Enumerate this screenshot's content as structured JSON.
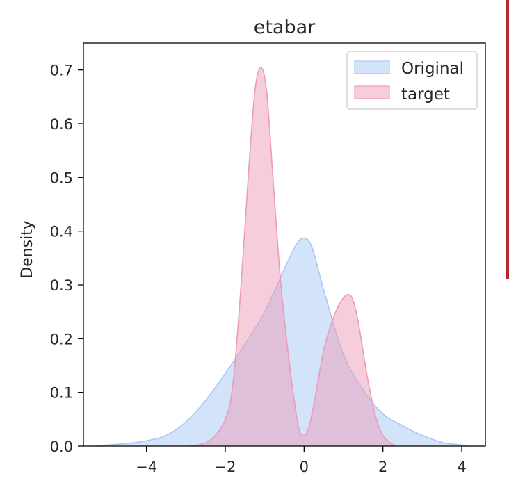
{
  "chart_data": {
    "type": "area",
    "title": "etabar",
    "xlabel": "",
    "ylabel": "Density",
    "xlim": [
      -5.6,
      4.6
    ],
    "ylim": [
      0.0,
      0.75
    ],
    "x_ticks": [
      "−4",
      "−2",
      "0",
      "2",
      "4"
    ],
    "x_tick_values": [
      -4,
      -2,
      0,
      2,
      4
    ],
    "y_ticks": [
      "0.0",
      "0.1",
      "0.2",
      "0.3",
      "0.4",
      "0.5",
      "0.6",
      "0.7"
    ],
    "y_tick_values": [
      0.0,
      0.1,
      0.2,
      0.3,
      0.4,
      0.5,
      0.6,
      0.7
    ],
    "grid": false,
    "legend_position": "top-right",
    "series": [
      {
        "name": "Original",
        "color": "#a8c8f5",
        "x": [
          -5.3,
          -5.0,
          -4.5,
          -4.0,
          -3.5,
          -3.0,
          -2.5,
          -2.0,
          -1.5,
          -1.0,
          -0.5,
          -0.2,
          0.0,
          0.2,
          0.5,
          1.0,
          1.5,
          2.0,
          2.5,
          3.0,
          3.5,
          4.0,
          4.2
        ],
        "y": [
          0.0,
          0.002,
          0.005,
          0.01,
          0.02,
          0.045,
          0.085,
          0.135,
          0.19,
          0.25,
          0.33,
          0.375,
          0.387,
          0.37,
          0.29,
          0.17,
          0.105,
          0.06,
          0.038,
          0.02,
          0.007,
          0.002,
          0.0
        ]
      },
      {
        "name": "target",
        "color": "#ec9bb8",
        "x": [
          -2.9,
          -2.4,
          -2.0,
          -1.8,
          -1.6,
          -1.4,
          -1.25,
          -1.1,
          -0.95,
          -0.8,
          -0.6,
          -0.4,
          -0.2,
          -0.1,
          0.0,
          0.1,
          0.2,
          0.35,
          0.5,
          0.7,
          0.9,
          1.1,
          1.25,
          1.4,
          1.6,
          1.8,
          2.0,
          2.3
        ],
        "y": [
          0.0,
          0.01,
          0.05,
          0.12,
          0.3,
          0.52,
          0.66,
          0.705,
          0.66,
          0.51,
          0.31,
          0.17,
          0.06,
          0.025,
          0.02,
          0.03,
          0.06,
          0.12,
          0.18,
          0.23,
          0.265,
          0.282,
          0.27,
          0.22,
          0.13,
          0.06,
          0.02,
          0.0
        ]
      }
    ]
  }
}
